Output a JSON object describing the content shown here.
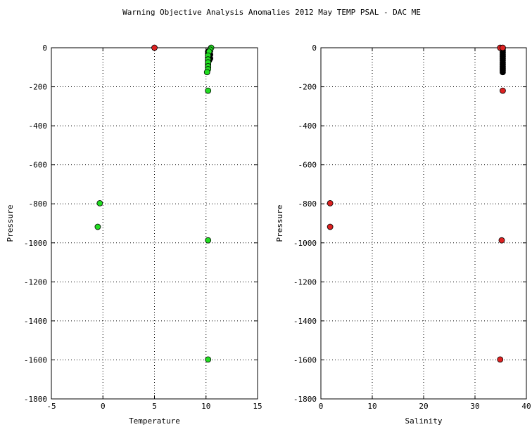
{
  "title": "Warning Objective Analysis Anomalies 2012 May TEMP PSAL - DAC ME",
  "chart_data": [
    {
      "type": "scatter",
      "xlabel": "Temperature",
      "ylabel": "Pressure",
      "xlim": [
        -5,
        15
      ],
      "ylim": [
        -1800,
        0
      ],
      "xticks": [
        "-5",
        "0",
        "5",
        "10",
        "15"
      ],
      "yticks": [
        "0",
        "-200",
        "-400",
        "-600",
        "-800",
        "-1000",
        "-1200",
        "-1400",
        "-1600",
        "-1800"
      ],
      "grid": true,
      "series": [
        {
          "color": "#000000",
          "points": [
            [
              10.2,
              -20
            ],
            [
              10.2,
              -30
            ],
            [
              10.2,
              -40
            ],
            [
              10.2,
              -50
            ],
            [
              10.2,
              -60
            ],
            [
              10.2,
              -70
            ],
            [
              10.2,
              -80
            ],
            [
              10.2,
              -90
            ],
            [
              10.2,
              -100
            ],
            [
              10.3,
              -25
            ],
            [
              10.3,
              -45
            ],
            [
              10.3,
              -65
            ],
            [
              10.4,
              -15
            ],
            [
              10.4,
              -35
            ],
            [
              10.4,
              -55
            ]
          ]
        },
        {
          "color": "#22dd22",
          "points": [
            [
              10.5,
              0
            ],
            [
              10.4,
              -10
            ],
            [
              10.3,
              -20
            ],
            [
              10.2,
              -40
            ],
            [
              10.2,
              -60
            ],
            [
              10.2,
              -75
            ],
            [
              10.2,
              -95
            ],
            [
              10.2,
              -110
            ],
            [
              10.1,
              -125
            ],
            [
              10.2,
              -220
            ],
            [
              -0.3,
              -797
            ],
            [
              -0.5,
              -918
            ],
            [
              10.2,
              -987
            ],
            [
              10.2,
              -1598
            ]
          ]
        },
        {
          "color": "#dd2222",
          "points": [
            [
              5.0,
              0
            ]
          ]
        }
      ]
    },
    {
      "type": "scatter",
      "xlabel": "Salinity",
      "ylabel": "Pressure",
      "xlim": [
        0,
        40
      ],
      "ylim": [
        -1800,
        0
      ],
      "xticks": [
        "0",
        "10",
        "20",
        "30",
        "40"
      ],
      "yticks": [
        "0",
        "-200",
        "-400",
        "-600",
        "-800",
        "-1000",
        "-1200",
        "-1400",
        "-1600",
        "-1800"
      ],
      "grid": true,
      "series": [
        {
          "color": "#000000",
          "points": [
            [
              35.4,
              -5
            ],
            [
              35.4,
              -15
            ],
            [
              35.4,
              -25
            ],
            [
              35.4,
              -35
            ],
            [
              35.4,
              -45
            ],
            [
              35.4,
              -55
            ],
            [
              35.4,
              -65
            ],
            [
              35.4,
              -75
            ],
            [
              35.4,
              -85
            ],
            [
              35.4,
              -95
            ],
            [
              35.4,
              -105
            ],
            [
              35.4,
              -115
            ],
            [
              35.4,
              -125
            ]
          ]
        },
        {
          "color": "#dd2222",
          "points": [
            [
              34.9,
              0
            ],
            [
              35.4,
              0
            ],
            [
              35.4,
              -220
            ],
            [
              1.8,
              -797
            ],
            [
              1.8,
              -918
            ],
            [
              35.2,
              -987
            ],
            [
              34.9,
              -1598
            ]
          ]
        }
      ]
    }
  ]
}
